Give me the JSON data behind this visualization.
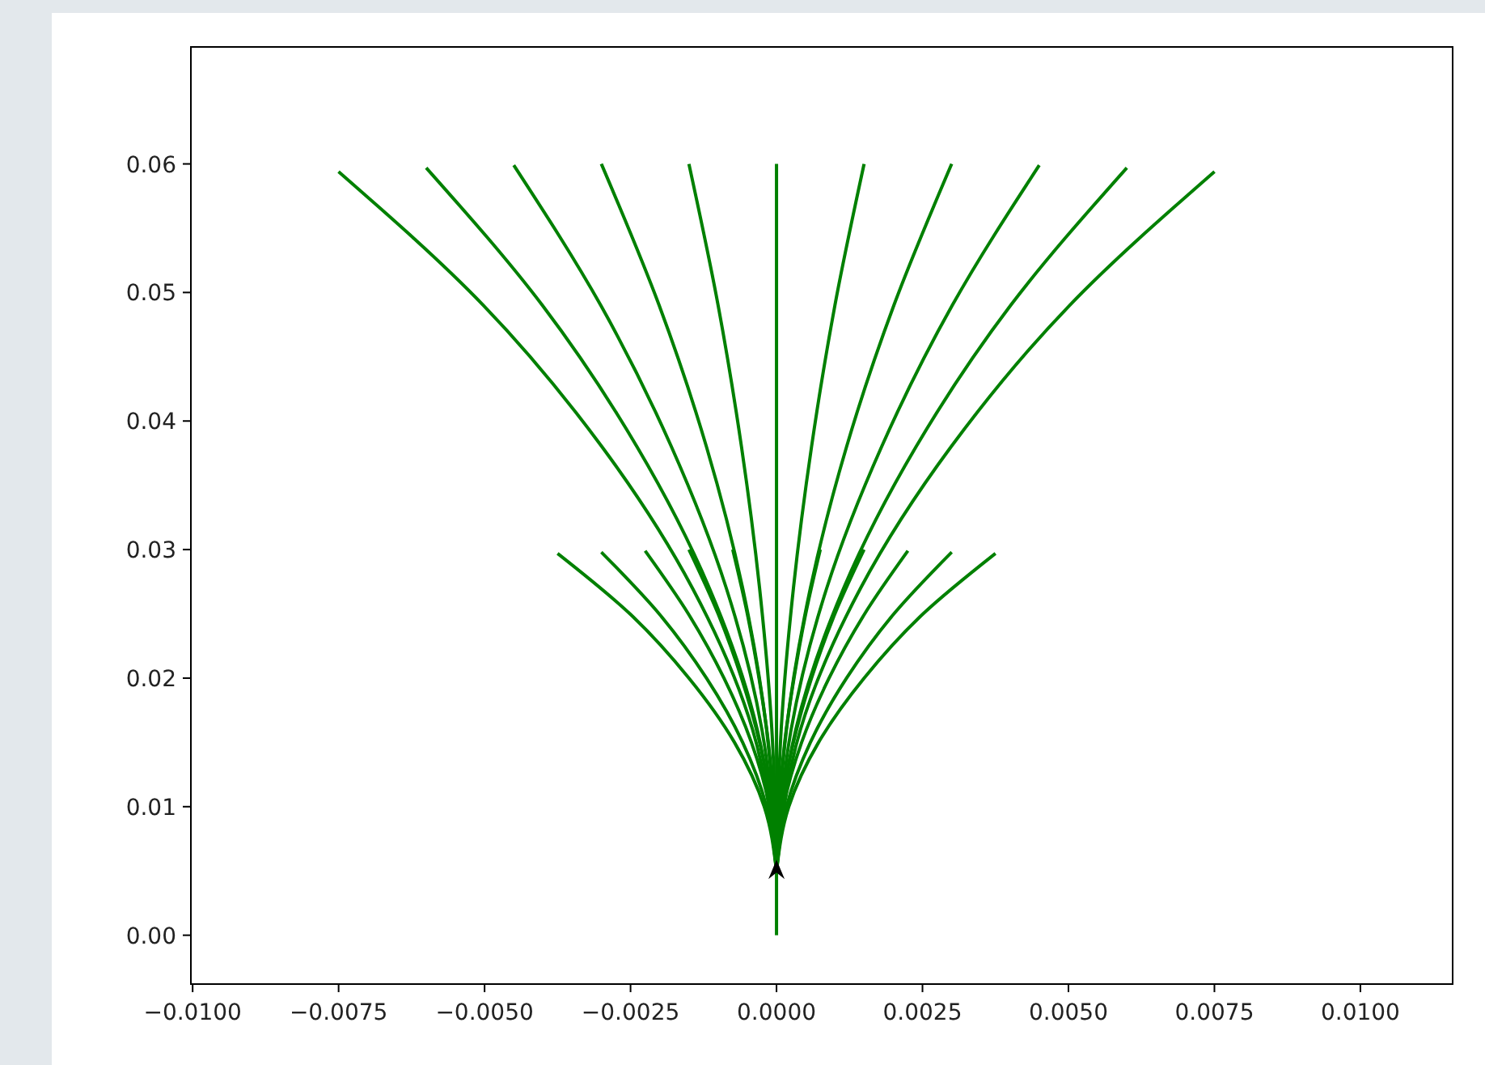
{
  "chart_data": {
    "type": "line",
    "xlim": [
      -0.01003,
      0.01158
    ],
    "ylim": [
      -0.0038,
      0.0691
    ],
    "xticks": [
      {
        "value": -0.01,
        "label": "−0.0100"
      },
      {
        "value": -0.0075,
        "label": "−0.0075"
      },
      {
        "value": -0.005,
        "label": "−0.0050"
      },
      {
        "value": -0.0025,
        "label": "−0.0025"
      },
      {
        "value": 0,
        "label": "0.0000"
      },
      {
        "value": 0.0025,
        "label": "0.0025"
      },
      {
        "value": 0.005,
        "label": "0.0050"
      },
      {
        "value": 0.0075,
        "label": "0.0075"
      },
      {
        "value": 0.01,
        "label": "0.0100"
      }
    ],
    "yticks": [
      {
        "value": 0,
        "label": "0.00"
      },
      {
        "value": 0.01,
        "label": "0.01"
      },
      {
        "value": 0.02,
        "label": "0.02"
      },
      {
        "value": 0.03,
        "label": "0.03"
      },
      {
        "value": 0.04,
        "label": "0.04"
      },
      {
        "value": 0.05,
        "label": "0.05"
      },
      {
        "value": 0.06,
        "label": "0.06"
      }
    ],
    "grid": false,
    "line_style": "solid",
    "series": [
      {
        "color": "#008000",
        "x": [
          0,
          0
        ],
        "values": [
          0,
          0.005
        ]
      },
      {
        "color": "#008000",
        "x": [
          0,
          0
        ],
        "values": [
          0.005,
          0.06
        ]
      },
      {
        "color": "#008000",
        "x": [
          0,
          -0.00041,
          -0.00144,
          -0.00299,
          -0.00502,
          -0.0075
        ],
        "values": [
          0.005,
          0.016,
          0.027,
          0.038,
          0.049,
          0.0594
        ]
      },
      {
        "color": "#008000",
        "x": [
          0,
          -0.00033,
          -0.00115,
          -0.00239,
          -0.00401,
          -0.006
        ],
        "values": [
          0.005,
          0.016,
          0.027,
          0.038,
          0.049,
          0.0597
        ]
      },
      {
        "color": "#008000",
        "x": [
          0,
          -0.00025,
          -0.00086,
          -0.0018,
          -0.00301,
          -0.0045
        ],
        "values": [
          0.005,
          0.016,
          0.027,
          0.038,
          0.049,
          0.0599
        ]
      },
      {
        "color": "#008000",
        "x": [
          0,
          -0.00017,
          -0.00058,
          -0.0012,
          -0.00201,
          -0.003
        ],
        "values": [
          0.005,
          0.016,
          0.027,
          0.038,
          0.049,
          0.06
        ]
      },
      {
        "color": "#008000",
        "x": [
          0,
          -8e-05,
          -0.00029,
          -0.0006,
          -0.001,
          -0.0015
        ],
        "values": [
          0.005,
          0.016,
          0.027,
          0.038,
          0.049,
          0.06
        ]
      },
      {
        "color": "#008000",
        "x": [
          0,
          8e-05,
          0.00029,
          0.0006,
          0.001,
          0.0015
        ],
        "values": [
          0.005,
          0.016,
          0.027,
          0.038,
          0.049,
          0.06
        ]
      },
      {
        "color": "#008000",
        "x": [
          0,
          0.00017,
          0.00058,
          0.0012,
          0.00201,
          0.003
        ],
        "values": [
          0.005,
          0.016,
          0.027,
          0.038,
          0.049,
          0.06
        ]
      },
      {
        "color": "#008000",
        "x": [
          0,
          0.00025,
          0.00086,
          0.0018,
          0.00301,
          0.0045
        ],
        "values": [
          0.005,
          0.016,
          0.027,
          0.038,
          0.049,
          0.0599
        ]
      },
      {
        "color": "#008000",
        "x": [
          0,
          0.00033,
          0.00115,
          0.00239,
          0.00401,
          0.006
        ],
        "values": [
          0.005,
          0.016,
          0.027,
          0.038,
          0.049,
          0.0597
        ]
      },
      {
        "color": "#008000",
        "x": [
          0,
          0.00041,
          0.00144,
          0.00299,
          0.00502,
          0.0075
        ],
        "values": [
          0.005,
          0.016,
          0.027,
          0.038,
          0.049,
          0.0594
        ]
      },
      {
        "color": "#008000",
        "x": [
          0,
          -0.00021,
          -0.00072,
          -0.0015,
          -0.00251,
          -0.00375
        ],
        "values": [
          0.005,
          0.01,
          0.015,
          0.02,
          0.025,
          0.0297
        ]
      },
      {
        "color": "#008000",
        "x": [
          0,
          -0.00017,
          -0.00058,
          -0.0012,
          -0.00201,
          -0.003
        ],
        "values": [
          0.005,
          0.01,
          0.015,
          0.02,
          0.025,
          0.0298
        ]
      },
      {
        "color": "#008000",
        "x": [
          0,
          -0.00012,
          -0.00043,
          -0.0009,
          -0.00151,
          -0.00225
        ],
        "values": [
          0.005,
          0.01,
          0.015,
          0.02,
          0.025,
          0.0299
        ]
      },
      {
        "color": "#008000",
        "x": [
          0,
          -8e-05,
          -0.00029,
          -0.0006,
          -0.001,
          -0.0015
        ],
        "values": [
          0.005,
          0.01,
          0.015,
          0.02,
          0.025,
          0.03
        ]
      },
      {
        "color": "#008000",
        "x": [
          0,
          -4e-05,
          -0.00014,
          -0.0003,
          -0.0005,
          -0.00075
        ],
        "values": [
          0.005,
          0.01,
          0.015,
          0.02,
          0.025,
          0.03
        ]
      },
      {
        "color": "#008000",
        "x": [
          0,
          4e-05,
          0.00014,
          0.0003,
          0.0005,
          0.00075
        ],
        "values": [
          0.005,
          0.01,
          0.015,
          0.02,
          0.025,
          0.03
        ]
      },
      {
        "color": "#008000",
        "x": [
          0,
          8e-05,
          0.00029,
          0.0006,
          0.001,
          0.0015
        ],
        "values": [
          0.005,
          0.01,
          0.015,
          0.02,
          0.025,
          0.03
        ]
      },
      {
        "color": "#008000",
        "x": [
          0,
          0.00012,
          0.00043,
          0.0009,
          0.00151,
          0.00225
        ],
        "values": [
          0.005,
          0.01,
          0.015,
          0.02,
          0.025,
          0.0299
        ]
      },
      {
        "color": "#008000",
        "x": [
          0,
          0.00017,
          0.00058,
          0.0012,
          0.00201,
          0.003
        ],
        "values": [
          0.005,
          0.01,
          0.015,
          0.02,
          0.025,
          0.0298
        ]
      },
      {
        "color": "#008000",
        "x": [
          0,
          0.00021,
          0.00072,
          0.0015,
          0.00251,
          0.00375
        ],
        "values": [
          0.005,
          0.01,
          0.015,
          0.02,
          0.025,
          0.0297
        ]
      }
    ]
  }
}
